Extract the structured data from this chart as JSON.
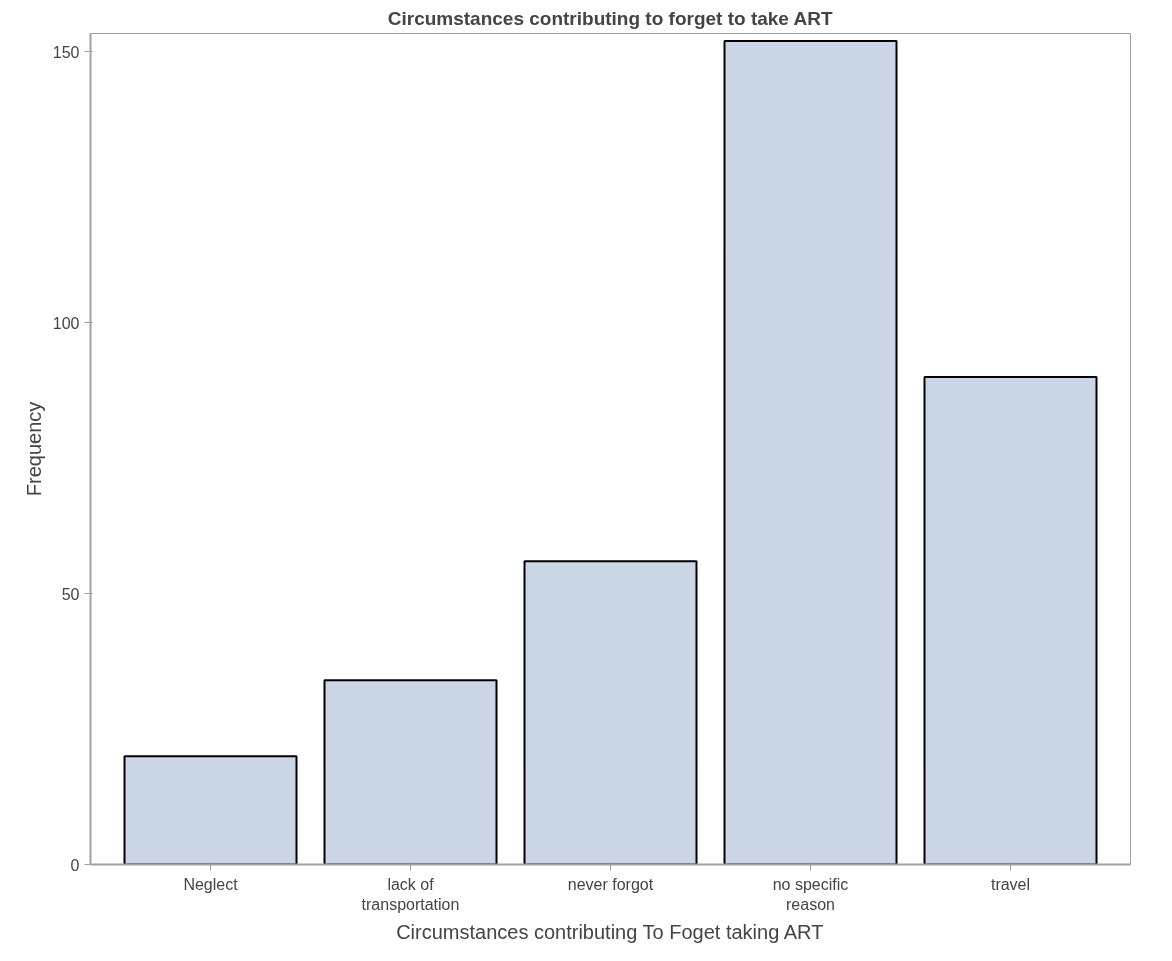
{
  "chart_data": {
    "type": "bar",
    "title": "Circumstances contributing to forget to take ART",
    "xlabel": "Circumstances contributing To Foget taking ART",
    "ylabel": "Frequency",
    "categories": [
      "Neglect",
      "lack of transportation",
      "never forgot",
      "no specific reason",
      "travel"
    ],
    "values": [
      20,
      34,
      56,
      152,
      90
    ],
    "color": "#cad5e5",
    "ylim": [
      0,
      153.4
    ],
    "yticks": [
      0,
      50,
      100,
      150
    ],
    "grid": false
  }
}
